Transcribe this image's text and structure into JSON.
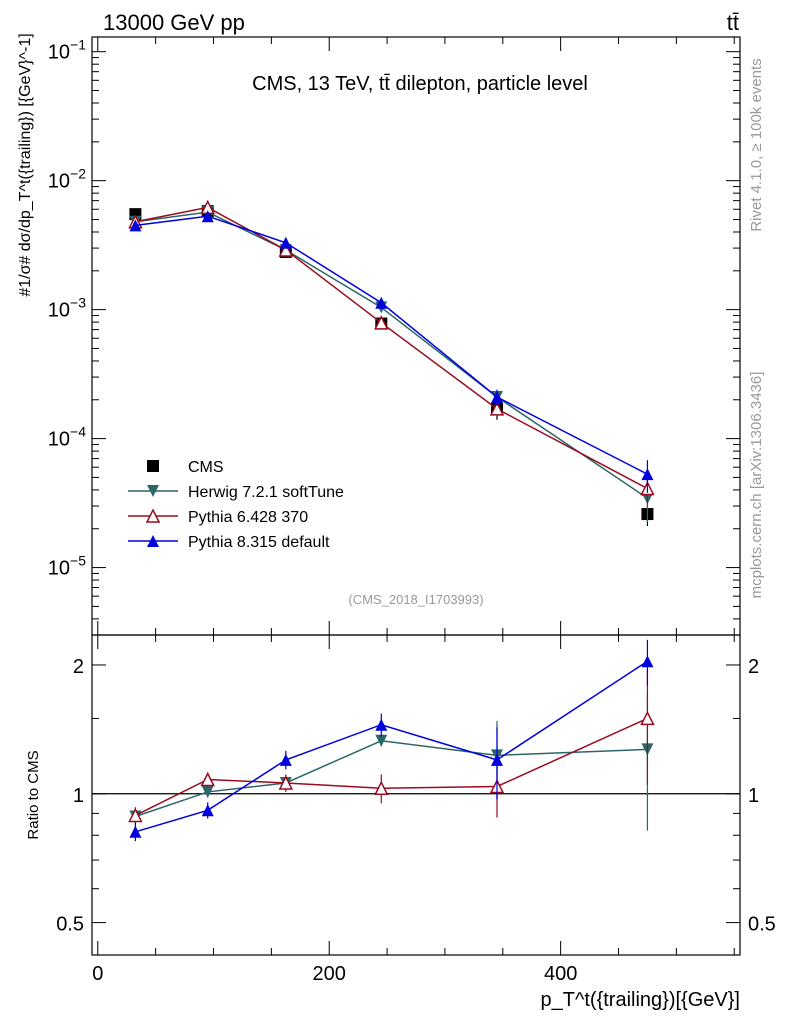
{
  "header": {
    "energy_label": "13000 GeV pp",
    "process_label": "tt̄"
  },
  "chart_data": [
    {
      "type": "line",
      "panel": "main",
      "title": "CMS, 13 TeV, tt̄ dilepton, particle level",
      "watermark": "(CMS_2018_I1703993)",
      "ylabel": "#1/σ# dσ/dp_T^t({trailing}) [{GeV}^-1]",
      "yscale": "log",
      "xlim": [
        -5,
        555
      ],
      "ylim": [
        3e-06,
        0.13
      ],
      "y_ticks": [
        {
          "value": 1e-05,
          "base": "10",
          "exp": "−5"
        },
        {
          "value": 0.0001,
          "base": "10",
          "exp": "−4"
        },
        {
          "value": 0.001,
          "base": "10",
          "exp": "−3"
        },
        {
          "value": 0.01,
          "base": "10",
          "exp": "−2"
        },
        {
          "value": 0.1,
          "base": "10",
          "exp": "−1"
        }
      ],
      "x": [
        32.5,
        95,
        162.5,
        245,
        345,
        475
      ],
      "series": [
        {
          "name": "CMS",
          "color": "#000000",
          "marker": "square",
          "values": [
            0.0055,
            0.0058,
            0.0028,
            0.00078,
            0.00017,
            2.6e-05
          ],
          "err_lo": [
            0,
            0,
            0,
            0,
            3e-05,
            5e-06
          ],
          "err_hi": [
            0,
            0,
            0,
            0,
            3e-05,
            5e-06
          ]
        },
        {
          "name": "Herwig 7.2.1 softTune",
          "color": "#2b6767",
          "marker": "triangle-down",
          "values": [
            0.0048,
            0.0057,
            0.0029,
            0.00104,
            0.00021,
            3.45e-05
          ],
          "err_lo": [
            0,
            0,
            0,
            5e-05,
            2e-05,
            1.2e-05
          ],
          "err_hi": [
            0,
            0,
            0,
            5e-05,
            2e-05,
            1.2e-05
          ]
        },
        {
          "name": "Pythia 6.428 370",
          "color": "#990b1f",
          "marker": "triangle-up-open",
          "values": [
            0.0048,
            0.0062,
            0.0029,
            0.00079,
            0.00017,
            4.1e-05
          ],
          "err_lo": [
            0,
            0,
            0,
            0,
            2e-05,
            1e-05
          ],
          "err_hi": [
            0,
            0,
            0,
            0,
            2e-05,
            1e-05
          ]
        },
        {
          "name": "Pythia 8.315 default",
          "color": "#0000dd",
          "marker": "triangle-up",
          "values": [
            0.0045,
            0.0053,
            0.0033,
            0.00113,
            0.00021,
            5.3e-05
          ],
          "err_lo": [
            0,
            0,
            0,
            7e-05,
            3e-05,
            1.5e-05
          ],
          "err_hi": [
            0,
            0,
            0,
            7e-05,
            3e-05,
            1.5e-05
          ]
        }
      ]
    },
    {
      "type": "line",
      "panel": "ratio",
      "ylabel": "Ratio to CMS",
      "xlabel": "p_T^t({trailing})[{GeV}]",
      "yscale": "log",
      "xlim": [
        -5,
        555
      ],
      "ylim": [
        0.42,
        2.35
      ],
      "y_ticks": [
        {
          "value": 0.5,
          "label": "0.5"
        },
        {
          "value": 1,
          "label": "1"
        },
        {
          "value": 2,
          "label": "2"
        }
      ],
      "x_ticks": [
        {
          "value": 0,
          "label": "0"
        },
        {
          "value": 200,
          "label": "200"
        },
        {
          "value": 400,
          "label": "400"
        }
      ],
      "x": [
        32.5,
        95,
        162.5,
        245,
        345,
        475
      ],
      "series": [
        {
          "name": "Herwig 7.2.1 softTune",
          "color": "#2b6767",
          "marker": "triangle-down",
          "values": [
            0.885,
            1.01,
            1.06,
            1.33,
            1.23,
            1.27
          ],
          "err_lo": [
            0.04,
            0.03,
            0.04,
            0.04,
            0.25,
            0.45
          ],
          "err_hi": [
            0.04,
            0.03,
            0.04,
            0.04,
            0.25,
            0.45
          ]
        },
        {
          "name": "Pythia 6.428 370",
          "color": "#990b1f",
          "marker": "triangle-up-open",
          "values": [
            0.89,
            1.08,
            1.06,
            1.03,
            1.04,
            1.5
          ],
          "err_lo": [
            0.04,
            0.04,
            0.05,
            0.08,
            0.16,
            0.45
          ],
          "err_hi": [
            0.04,
            0.04,
            0.05,
            0.08,
            0.16,
            0.45
          ]
        },
        {
          "name": "Pythia 8.315 default",
          "color": "#0000dd",
          "marker": "triangle-up",
          "values": [
            0.815,
            0.915,
            1.2,
            1.45,
            1.2,
            2.04
          ],
          "err_lo": [
            0.04,
            0.04,
            0.06,
            0.09,
            0.23,
            0.25
          ],
          "err_hi": [
            0.04,
            0.04,
            0.06,
            0.09,
            0.23,
            0.25
          ]
        }
      ]
    }
  ],
  "side_text": {
    "rivet": "Rivet 4.1.0, ≥ 100k events",
    "mcplots": "mcplots.cern.ch [arXiv:1306.3436]"
  }
}
